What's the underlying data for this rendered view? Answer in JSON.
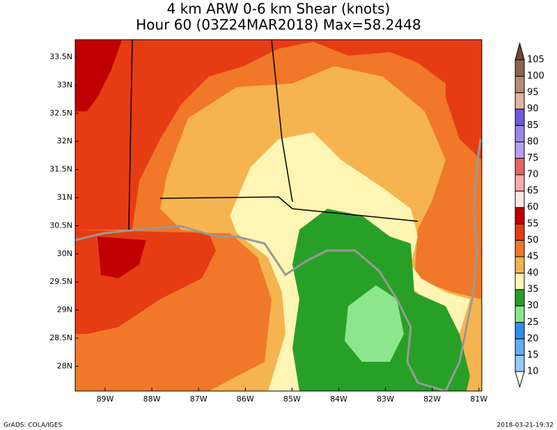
{
  "title": "4 km ARW 0-6 km Shear (knots)",
  "subtitle": "Hour 60 (03Z24MAR2018) Max=58.2448",
  "lat_labels": [
    "33.5N",
    "33N",
    "32.5N",
    "32N",
    "31.5N",
    "31N",
    "30.5N",
    "30N",
    "29.5N",
    "29N",
    "28.5N",
    "28N"
  ],
  "lon_labels": [
    "89W",
    "88W",
    "87W",
    "86W",
    "85W",
    "84W",
    "83W",
    "82W",
    "81W"
  ],
  "colorbar": {
    "levels": [
      10,
      15,
      20,
      25,
      30,
      35,
      40,
      45,
      50,
      55,
      60,
      65,
      70,
      75,
      80,
      85,
      90,
      95,
      100,
      105
    ],
    "colors": [
      "#ffffff",
      "#96c8fa",
      "#64aaf5",
      "#2e8ef0",
      "#8ce68c",
      "#28a028",
      "#fff5b4",
      "#f5b450",
      "#f07828",
      "#e63c14",
      "#c00000",
      "#ffe6e6",
      "#faaaaa",
      "#e66464",
      "#b4a0f0",
      "#9a86ec",
      "#6e5adc",
      "#e0b4a0",
      "#b48c78",
      "#8c6450",
      "#6e4632"
    ]
  },
  "footer_left": "GrADS: COLA/IGES",
  "footer_right": "2018-03-21-19:32"
}
